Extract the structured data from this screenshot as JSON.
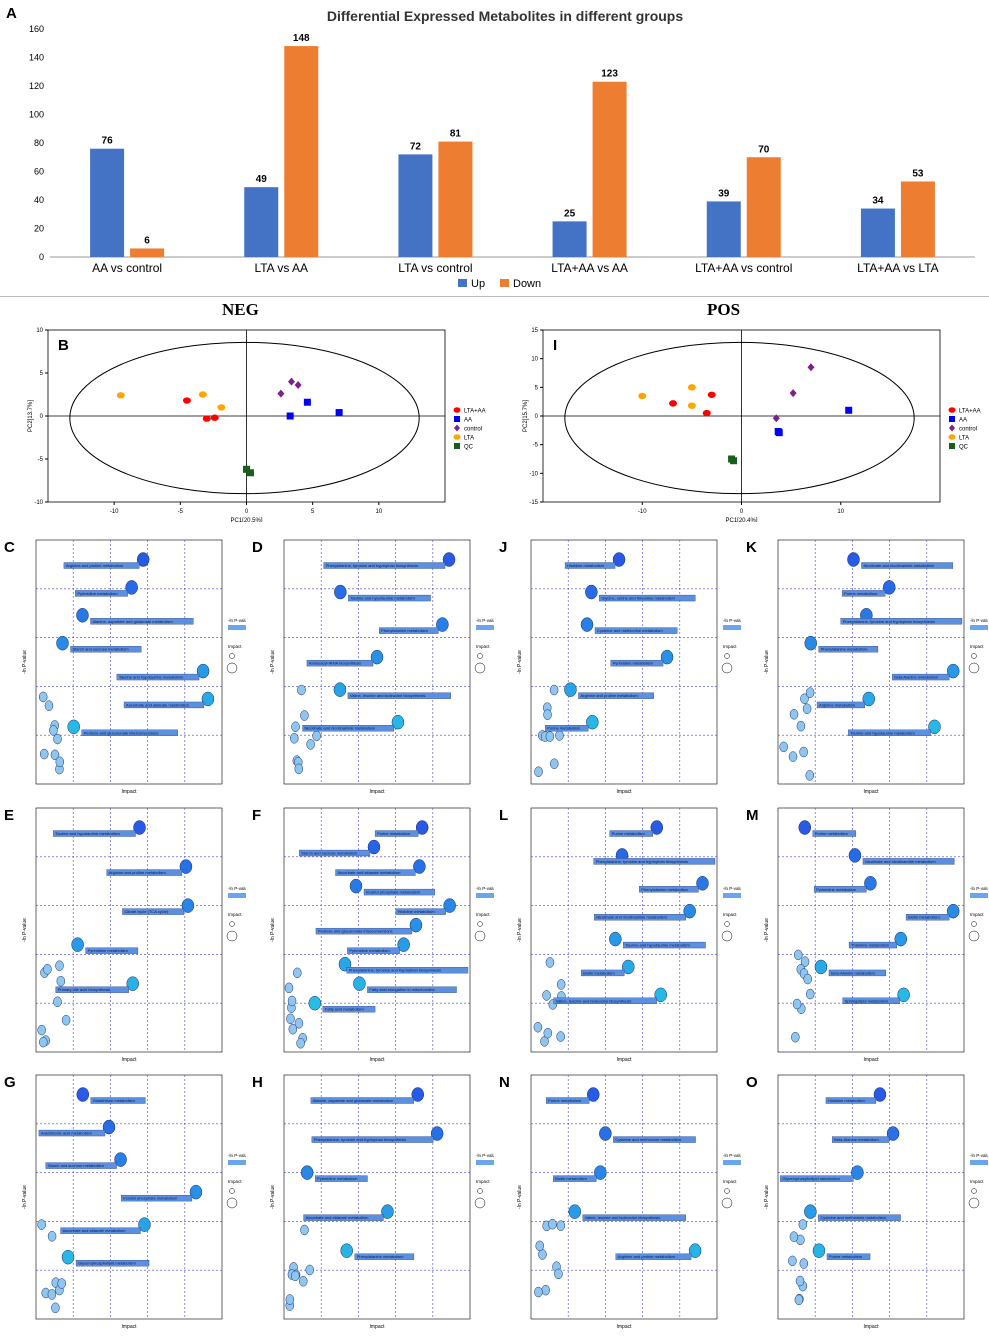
{
  "panel_a": {
    "letter": "A",
    "legend": [
      {
        "label": "Up",
        "color": "#4472C4"
      },
      {
        "label": "Down",
        "color": "#ED7D31"
      }
    ]
  },
  "chart_data": [
    {
      "id": "A",
      "type": "bar",
      "title": "Differential Expressed Metabolites in different groups",
      "categories": [
        "AA vs control",
        "LTA vs AA",
        "LTA vs control",
        "LTA+AA vs AA",
        "LTA+AA vs control",
        "LTA+AA vs LTA"
      ],
      "series": [
        {
          "name": "Up",
          "color": "#4472C4",
          "values": [
            76,
            49,
            72,
            25,
            39,
            34
          ]
        },
        {
          "name": "Down",
          "color": "#ED7D31",
          "values": [
            6,
            148,
            81,
            123,
            70,
            53
          ]
        }
      ],
      "ylim": [
        0,
        160
      ],
      "yticks": [
        0,
        20,
        40,
        60,
        80,
        100,
        120,
        140,
        160
      ],
      "legend_position": "bottom-center",
      "grid": false
    },
    {
      "id": "B",
      "type": "scatter",
      "xlabel": "PC1[20.5%]",
      "ylabel": "PC2[13.7%]",
      "xlim": [
        -15,
        15
      ],
      "ylim": [
        -10,
        10
      ],
      "xticks": [
        -10,
        -5,
        0,
        5,
        10
      ],
      "yticks": [
        -10,
        -5,
        0,
        5,
        10
      ],
      "legend": [
        {
          "label": "LTA+AA",
          "color": "#ff0000",
          "shape": "circle"
        },
        {
          "label": "AA",
          "color": "#0000ff",
          "shape": "square"
        },
        {
          "label": "control",
          "color": "#7f1f8f",
          "shape": "diamond"
        },
        {
          "label": "LTA",
          "color": "#ffa500",
          "shape": "circle"
        },
        {
          "label": "QC",
          "color": "#1a5e1a",
          "shape": "square"
        }
      ],
      "points": [
        {
          "group": "LTA",
          "x": -9.5,
          "y": 2.4
        },
        {
          "group": "LTA",
          "x": -3.3,
          "y": 2.5
        },
        {
          "group": "LTA",
          "x": -1.9,
          "y": 1.0
        },
        {
          "group": "LTA+AA",
          "x": -4.5,
          "y": 1.8
        },
        {
          "group": "LTA+AA",
          "x": -3.0,
          "y": -0.3
        },
        {
          "group": "LTA+AA",
          "x": -2.4,
          "y": -0.2
        },
        {
          "group": "control",
          "x": 2.6,
          "y": 2.6
        },
        {
          "group": "control",
          "x": 3.4,
          "y": 4.0
        },
        {
          "group": "control",
          "x": 3.9,
          "y": 3.6
        },
        {
          "group": "AA",
          "x": 3.3,
          "y": 0.0
        },
        {
          "group": "AA",
          "x": 4.6,
          "y": 1.6
        },
        {
          "group": "AA",
          "x": 7.0,
          "y": 0.4
        },
        {
          "group": "QC",
          "x": 0.0,
          "y": -6.2
        },
        {
          "group": "QC",
          "x": 0.3,
          "y": -6.6
        }
      ]
    },
    {
      "id": "I",
      "type": "scatter",
      "xlabel": "PC1[20.4%]",
      "ylabel": "PC2[15.7%]",
      "xlim": [
        -20,
        20
      ],
      "ylim": [
        -15,
        15
      ],
      "xticks": [
        -10,
        0,
        10
      ],
      "yticks": [
        -15,
        -10,
        -5,
        0,
        5,
        10,
        15
      ],
      "legend": [
        {
          "label": "LTA+AA",
          "color": "#ff0000",
          "shape": "circle"
        },
        {
          "label": "AA",
          "color": "#0000ff",
          "shape": "square"
        },
        {
          "label": "control",
          "color": "#7f1f8f",
          "shape": "diamond"
        },
        {
          "label": "LTA",
          "color": "#ffa500",
          "shape": "circle"
        },
        {
          "label": "QC",
          "color": "#1a5e1a",
          "shape": "square"
        }
      ],
      "points": [
        {
          "group": "LTA",
          "x": -10.0,
          "y": 3.5
        },
        {
          "group": "LTA",
          "x": -5.0,
          "y": 5.0
        },
        {
          "group": "LTA",
          "x": -5.0,
          "y": 1.8
        },
        {
          "group": "LTA+AA",
          "x": -6.9,
          "y": 2.2
        },
        {
          "group": "LTA+AA",
          "x": -3.0,
          "y": 3.7
        },
        {
          "group": "LTA+AA",
          "x": -3.5,
          "y": 0.5
        },
        {
          "group": "control",
          "x": 3.5,
          "y": -0.4
        },
        {
          "group": "control",
          "x": 5.2,
          "y": 4.0
        },
        {
          "group": "control",
          "x": 7.0,
          "y": 8.5
        },
        {
          "group": "AA",
          "x": 3.7,
          "y": -2.7
        },
        {
          "group": "AA",
          "x": 3.8,
          "y": -2.9
        },
        {
          "group": "AA",
          "x": 10.8,
          "y": 1.0
        },
        {
          "group": "QC",
          "x": -1.0,
          "y": -7.5
        },
        {
          "group": "QC",
          "x": -0.8,
          "y": -7.8
        }
      ]
    }
  ],
  "pathway_panels": [
    {
      "id": "C",
      "labels": [
        "Arginine and proline metabolism",
        "Pyrimidine metabolism",
        "Alanine, aspartate and glutamate metabolism",
        "Starch and sucrose metabolism",
        "Taurine and hypotaurine metabolism",
        "Ascorbate and aldarate metabolism",
        "Pentose and glucuronate interconversions"
      ]
    },
    {
      "id": "D",
      "labels": [
        "Phenylalanine, tyrosine and tryptophan biosynthesis",
        "Taurine and hypotaurine metabolism",
        "Phenylalanine metabolism",
        "Aminoacyl-tRNA biosynthesis",
        "Valine, leucine and isoleucine biosynthesis",
        "Nicotinate and nicotinamide metabolism"
      ]
    },
    {
      "id": "E",
      "labels": [
        "Taurine and hypotaurine metabolism",
        "Arginine and proline metabolism",
        "Citrate cycle (TCA cycle)",
        "Pyrimidine metabolism",
        "Primary bile acid biosynthesis"
      ]
    },
    {
      "id": "F",
      "labels": [
        "Purine metabolism",
        "Starch and sucrose metabolism",
        "Ascorbate and aldarate metabolism",
        "Inositol phosphate metabolism",
        "Histidine metabolism",
        "Pentose and glucuronate interconversions",
        "Pyrimidine metabolism",
        "Phenylalanine, tyrosine and tryptophan biosynthesis",
        "Fatty acid elongation in mitochondria",
        "Fatty acid metabolism"
      ]
    },
    {
      "id": "G",
      "labels": [
        "Glutathione metabolism",
        "Arachidonic acid metabolism",
        "Starch and sucrose metabolism",
        "Inositol phosphate metabolism",
        "Ascorbate and aldarate metabolism",
        "Glycerophospholipid metabolism"
      ]
    },
    {
      "id": "H",
      "labels": [
        "Alanine, aspartate and glutamate metabolism",
        "Phenylalanine, tyrosine and tryptophan biosynthesis",
        "Pyrimidine metabolism",
        "Ascorbate and aldarate metabolism",
        "Phenylalanine metabolism"
      ]
    },
    {
      "id": "J",
      "labels": [
        "Histidine metabolism",
        "Glycine, serine and threonine metabolism",
        "Cysteine and methionine metabolism",
        "Pyrimidine metabolism",
        "Arginine and proline metabolism",
        "Purine metabolism"
      ]
    },
    {
      "id": "K",
      "labels": [
        "Nicotinate and nicotinamide metabolism",
        "Purine metabolism",
        "Phenylalanine, tyrosine and tryptophan biosynthesis",
        "Phenylalanine metabolism",
        "beta-Alanine metabolism",
        "Arginine metabolism",
        "Taurine and hypotaurine metabolism"
      ]
    },
    {
      "id": "L",
      "labels": [
        "Purine metabolism",
        "Phenylalanine, tyrosine and tryptophan biosynthesis",
        "Phenylalanine metabolism",
        "Nicotinate and nicotinamide metabolism",
        "Taurine and hypotaurine metabolism",
        "Biotin metabolism",
        "Valine, leucine and isoleucine biosynthesis"
      ]
    },
    {
      "id": "M",
      "labels": [
        "Purine metabolism",
        "Nicotinate and nicotinamide metabolism",
        "Pyrimidine metabolism",
        "Biotin metabolism",
        "Thiamine metabolism",
        "beta-Alanine metabolism",
        "Sphingolipid metabolism"
      ]
    },
    {
      "id": "N",
      "labels": [
        "Purine metabolism",
        "Cysteine and methionine metabolism",
        "Biotin metabolism",
        "Valine, leucine and isoleucine biosynthesis",
        "Arginine and proline metabolism"
      ]
    },
    {
      "id": "O",
      "labels": [
        "Histidine metabolism",
        "Beta-Alanine metabolism",
        "Glycerophospholipid metabolism",
        "Cysteine and methionine metabolism",
        "Purine metabolism"
      ]
    }
  ],
  "sections": {
    "neg": "NEG",
    "pos": "POS"
  },
  "axis_text": {
    "impact": "Impact",
    "logp": "-ln P-value"
  }
}
